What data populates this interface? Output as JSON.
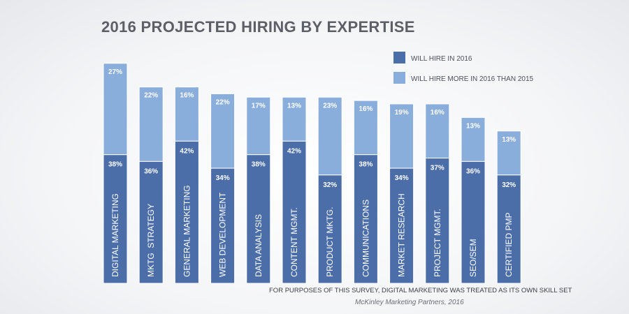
{
  "chart_data": {
    "type": "bar",
    "stacked": true,
    "title": "2016 PROJECTED HIRING BY EXPERTISE",
    "categories": [
      "DIGITAL MARKETING",
      "MKTG  STRATEGY",
      "GENERAL MARKETING",
      "WEB DEVELOPMENT",
      "DATA ANALYSIS",
      "CONTENT MGMT.",
      "PRODUCT MKTG.",
      "COMMUNICATIONS",
      "MARKET RESEARCH",
      "PROJECT MGMT.",
      "SEO/SEM",
      "CERTIFIED PMP"
    ],
    "series": [
      {
        "name": "WILL HIRE IN 2016",
        "color": "#4b6ea9",
        "values": [
          38,
          36,
          42,
          34,
          38,
          42,
          32,
          38,
          34,
          37,
          36,
          32
        ]
      },
      {
        "name": "WILL HIRE MORE IN 2016 THAN 2015",
        "color": "#8aaedb",
        "values": [
          27,
          22,
          16,
          22,
          17,
          13,
          23,
          16,
          19,
          16,
          13,
          13
        ]
      }
    ],
    "value_suffix": "%",
    "xlabel": "",
    "ylabel": "",
    "legend_position": "top-right",
    "note": "FOR PURPOSES OF THIS SURVEY, DIGITAL MARKETING WAS TREATED AS ITS OWN SKILL SET",
    "source": "McKinley Marketing Partners, 2016"
  }
}
